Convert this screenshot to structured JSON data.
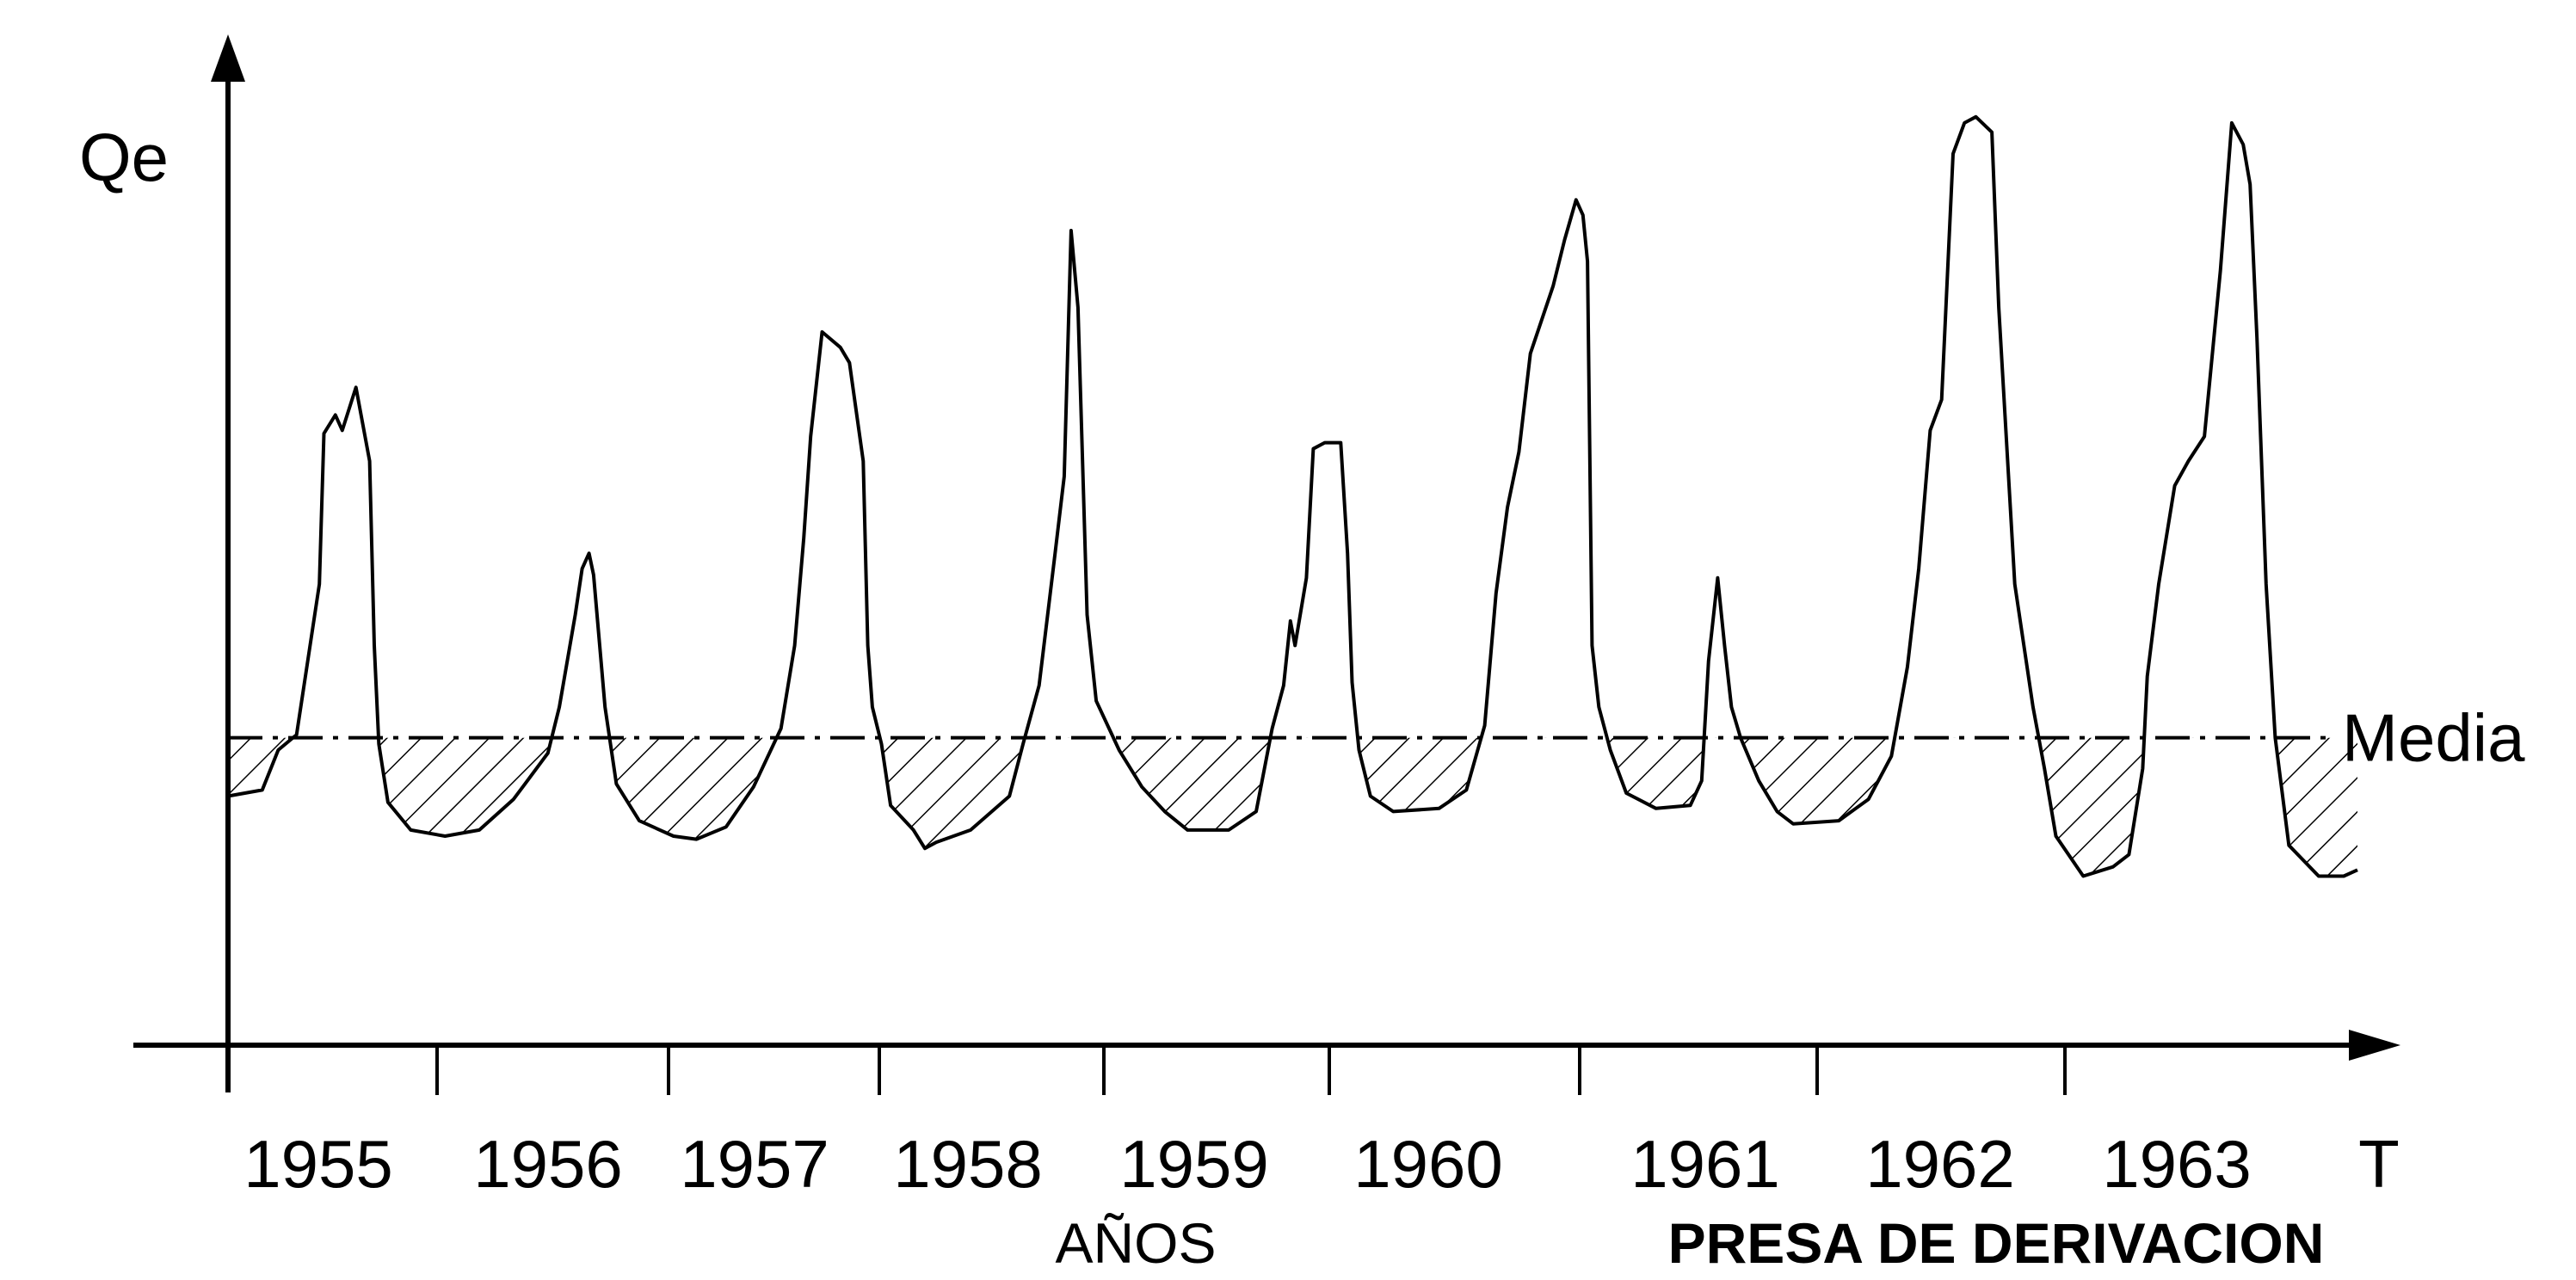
{
  "chart_data": {
    "type": "line",
    "title": "",
    "xlabel": "AÑOS",
    "ylabel": "Qe",
    "x_end_label": "T",
    "caption": "PRESA DE DERIVACION",
    "reference_line": {
      "label": "Media",
      "value": 100,
      "style": "dash-dot"
    },
    "shaded_region": "deficit below media (hatched)",
    "categories": [
      "1955",
      "1956",
      "1957",
      "1958",
      "1959",
      "1960",
      "1961",
      "1962",
      "1963"
    ],
    "ylim": [
      0,
      340
    ],
    "grid": false,
    "series": [
      {
        "points": [
          [
            0.0,
            81
          ],
          [
            0.15,
            83
          ],
          [
            0.22,
            96
          ],
          [
            0.3,
            101
          ],
          [
            0.4,
            150
          ],
          [
            0.42,
            199
          ],
          [
            0.47,
            205
          ],
          [
            0.5,
            200
          ],
          [
            0.56,
            214
          ],
          [
            0.62,
            190
          ],
          [
            0.64,
            130
          ],
          [
            0.66,
            98
          ],
          [
            0.7,
            79
          ],
          [
            0.8,
            70
          ],
          [
            0.95,
            68
          ],
          [
            1.1,
            70
          ],
          [
            1.25,
            80
          ],
          [
            1.3,
            85
          ],
          [
            1.4,
            95
          ],
          [
            1.45,
            110
          ],
          [
            1.52,
            140
          ],
          [
            1.55,
            155
          ],
          [
            1.58,
            160
          ],
          [
            1.6,
            153
          ],
          [
            1.65,
            110
          ],
          [
            1.7,
            85
          ],
          [
            1.8,
            73
          ],
          [
            1.95,
            68
          ],
          [
            2.05,
            67
          ],
          [
            2.18,
            71
          ],
          [
            2.3,
            84
          ],
          [
            2.42,
            103
          ],
          [
            2.48,
            130
          ],
          [
            2.52,
            165
          ],
          [
            2.55,
            198
          ],
          [
            2.6,
            232
          ],
          [
            2.68,
            227
          ],
          [
            2.72,
            222
          ],
          [
            2.78,
            190
          ],
          [
            2.8,
            130
          ],
          [
            2.82,
            110
          ],
          [
            2.86,
            98
          ],
          [
            2.9,
            78
          ],
          [
            3.0,
            70
          ],
          [
            3.05,
            64
          ],
          [
            3.1,
            66
          ],
          [
            3.25,
            70
          ],
          [
            3.42,
            81
          ],
          [
            3.48,
            98
          ],
          [
            3.55,
            117
          ],
          [
            3.62,
            160
          ],
          [
            3.66,
            185
          ],
          [
            3.69,
            265
          ],
          [
            3.72,
            240
          ],
          [
            3.76,
            140
          ],
          [
            3.8,
            112
          ],
          [
            3.9,
            96
          ],
          [
            4.0,
            84
          ],
          [
            4.1,
            76
          ],
          [
            4.2,
            70
          ],
          [
            4.38,
            70
          ],
          [
            4.5,
            76
          ],
          [
            4.57,
            103
          ],
          [
            4.62,
            117
          ],
          [
            4.65,
            138
          ],
          [
            4.67,
            130
          ],
          [
            4.72,
            152
          ],
          [
            4.75,
            194
          ],
          [
            4.8,
            196
          ],
          [
            4.87,
            196
          ],
          [
            4.9,
            160
          ],
          [
            4.92,
            118
          ],
          [
            4.95,
            96
          ],
          [
            5.0,
            81
          ],
          [
            5.1,
            76
          ],
          [
            5.3,
            77
          ],
          [
            5.42,
            83
          ],
          [
            5.5,
            104
          ],
          [
            5.55,
            147
          ],
          [
            5.6,
            175
          ],
          [
            5.65,
            193
          ],
          [
            5.7,
            225
          ],
          [
            5.8,
            247
          ],
          [
            5.85,
            262
          ],
          [
            5.9,
            275
          ],
          [
            5.93,
            270
          ],
          [
            5.95,
            255
          ],
          [
            5.97,
            130
          ],
          [
            6.0,
            110
          ],
          [
            6.05,
            96
          ],
          [
            6.12,
            82
          ],
          [
            6.25,
            77
          ],
          [
            6.4,
            78
          ],
          [
            6.45,
            86
          ],
          [
            6.48,
            125
          ],
          [
            6.52,
            152
          ],
          [
            6.55,
            130
          ],
          [
            6.58,
            110
          ],
          [
            6.62,
            100
          ],
          [
            6.7,
            86
          ],
          [
            6.78,
            76
          ],
          [
            6.85,
            72
          ],
          [
            7.05,
            73
          ],
          [
            7.18,
            80
          ],
          [
            7.28,
            94
          ],
          [
            7.35,
            123
          ],
          [
            7.4,
            155
          ],
          [
            7.45,
            200
          ],
          [
            7.5,
            210
          ],
          [
            7.55,
            290
          ],
          [
            7.6,
            300
          ],
          [
            7.65,
            302
          ],
          [
            7.72,
            297
          ],
          [
            7.75,
            240
          ],
          [
            7.82,
            150
          ],
          [
            7.9,
            110
          ],
          [
            7.95,
            90
          ],
          [
            8.0,
            68
          ],
          [
            8.12,
            55
          ],
          [
            8.25,
            58
          ],
          [
            8.32,
            62
          ],
          [
            8.38,
            90
          ],
          [
            8.4,
            120
          ],
          [
            8.45,
            150
          ],
          [
            8.52,
            182
          ],
          [
            8.58,
            190
          ],
          [
            8.65,
            198
          ],
          [
            8.72,
            252
          ],
          [
            8.77,
            300
          ],
          [
            8.82,
            293
          ],
          [
            8.85,
            280
          ],
          [
            8.88,
            230
          ],
          [
            8.92,
            150
          ],
          [
            8.96,
            100
          ],
          [
            9.02,
            65
          ],
          [
            9.15,
            55
          ],
          [
            9.26,
            55
          ],
          [
            9.32,
            57
          ]
        ]
      }
    ]
  }
}
